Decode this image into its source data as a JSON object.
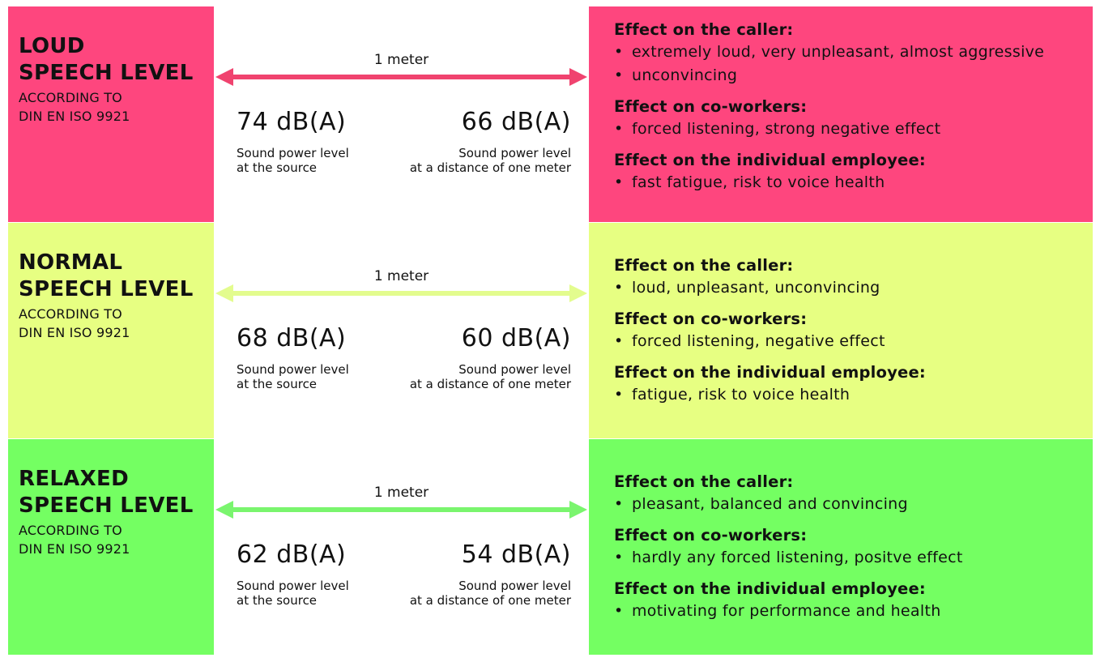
{
  "distance_label": "1 meter",
  "rows": [
    {
      "id": "loud",
      "color": "#fe467e",
      "arrow_color": "#f0436f",
      "title": "LOUD\nSPEECH LEVEL",
      "standard": "ACCORDING TO\nDIN EN ISO 9921",
      "source_db": "74 dB(A)",
      "source_desc": "Sound power level\nat the source",
      "distance_db": "66 dB(A)",
      "distance_desc": "Sound power level\nat a distance of one meter",
      "effects": [
        {
          "title": "Effect on the caller:",
          "items": [
            "extremely loud, very unpleasant, almost aggressive",
            "unconvincing"
          ]
        },
        {
          "title": "Effect on co-workers:",
          "items": [
            "forced listening, strong negative effect"
          ]
        },
        {
          "title": "Effect on the individual employee:",
          "items": [
            "fast fatigue, risk to voice health"
          ]
        }
      ]
    },
    {
      "id": "normal",
      "color": "#e7ff82",
      "arrow_color": "#e3fc8e",
      "title": "NORMAL\nSPEECH LEVEL",
      "standard": "ACCORDING TO\nDIN EN ISO 9921",
      "source_db": "68 dB(A)",
      "source_desc": "Sound power level\nat the source",
      "distance_db": "60 dB(A)",
      "distance_desc": "Sound power level\nat a distance of one meter",
      "effects": [
        {
          "title": "Effect on the caller:",
          "items": [
            "loud, unpleasant, unconvincing"
          ]
        },
        {
          "title": "Effect on co-workers:",
          "items": [
            "forced listening, negative effect"
          ]
        },
        {
          "title": "Effect on the individual employee:",
          "items": [
            "fatigue, risk to voice health"
          ]
        }
      ]
    },
    {
      "id": "relaxed",
      "color": "#74ff62",
      "arrow_color": "#7af56e",
      "title": "RELAXED\nSPEECH LEVEL",
      "standard": "ACCORDING TO\nDIN EN ISO 9921",
      "source_db": "62 dB(A)",
      "source_desc": "Sound power level\nat the source",
      "distance_db": "54 dB(A)",
      "distance_desc": "Sound power level\nat a distance of one meter",
      "effects": [
        {
          "title": "Effect on the caller:",
          "items": [
            "pleasant, balanced and convincing"
          ]
        },
        {
          "title": "Effect on co-workers:",
          "items": [
            "hardly any forced listening, positve effect"
          ]
        },
        {
          "title": "Effect on the individual employee:",
          "items": [
            "motivating for performance and health"
          ]
        }
      ]
    }
  ]
}
